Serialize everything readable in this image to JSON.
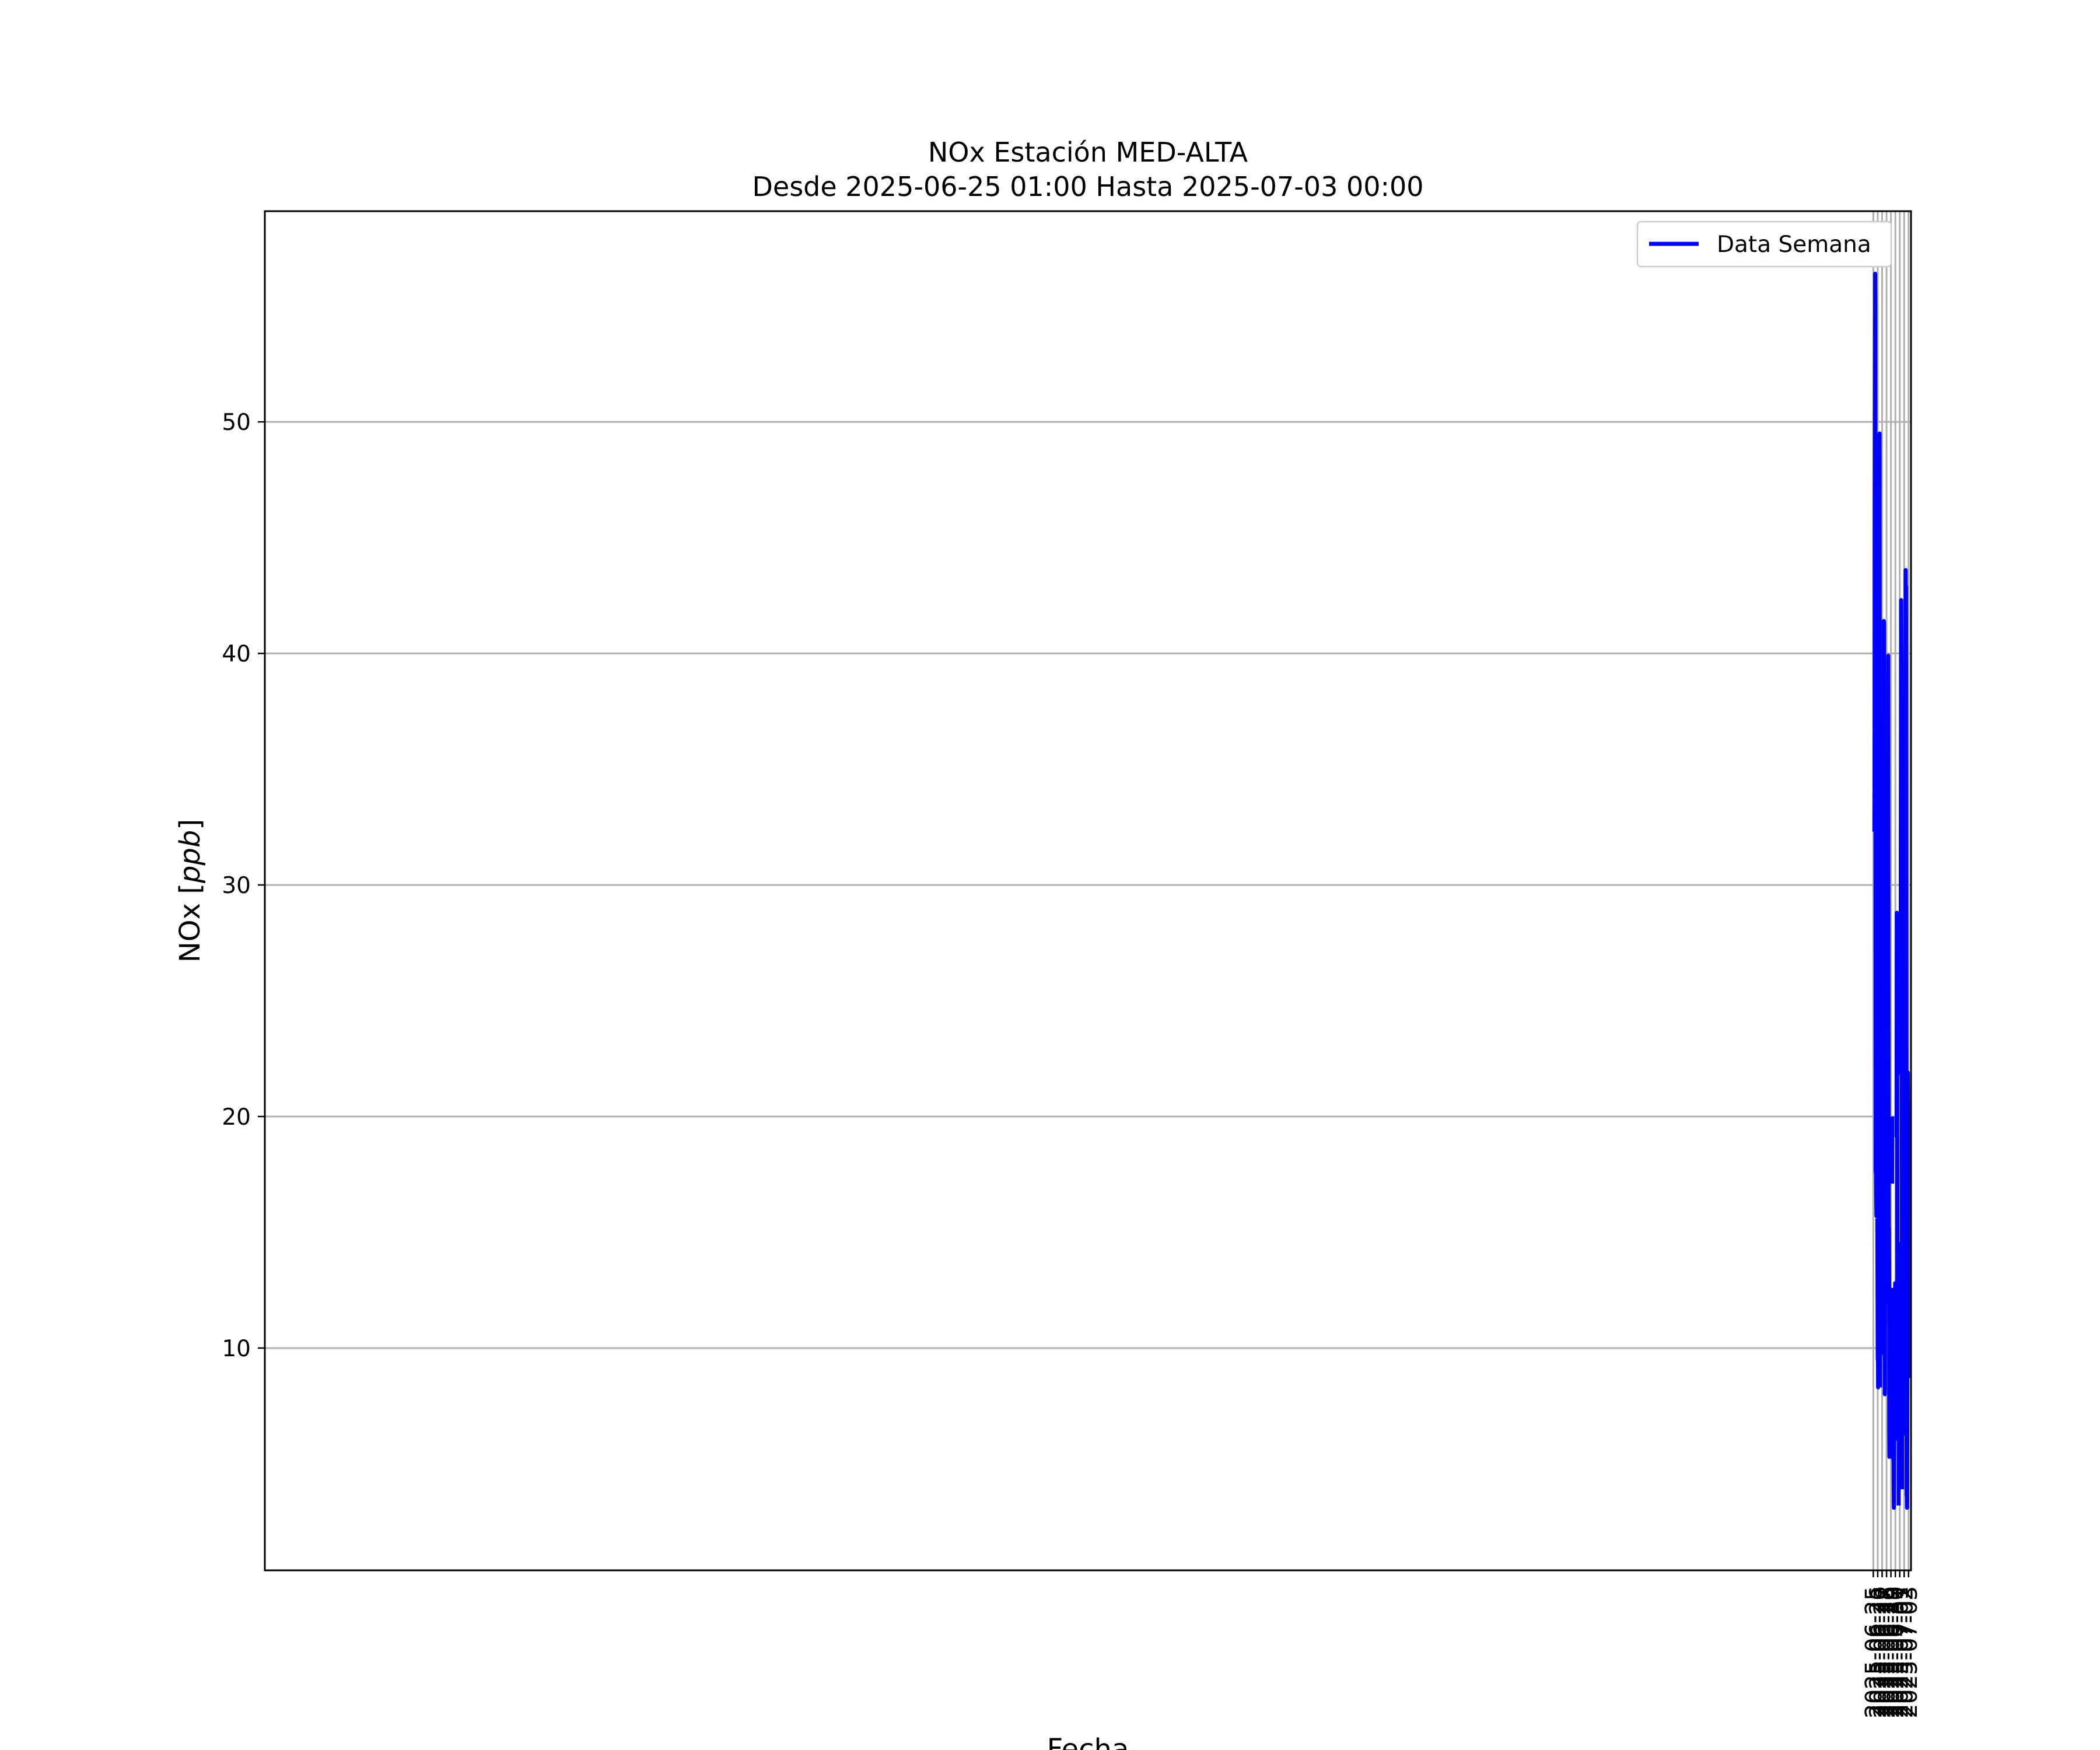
{
  "chart_data": {
    "type": "line",
    "title_line1": "NOx Estación MED-ALTA",
    "title_line2": "Desde 2025-06-25 01:00 Hasta 2025-07-03 00:00",
    "xlabel": "Fecha",
    "ylabel": "NOx [ppb]",
    "ylabel_parts": {
      "prefix": "NOx [",
      "unit": "ppb",
      "suffix": "]"
    },
    "x_ticks": [
      "2025-06-25",
      "2025-06-26",
      "2025-06-27",
      "2025-06-28",
      "2025-06-29",
      "2025-06-30",
      "2025-07-01",
      "2025-07-02",
      "2025-07-03"
    ],
    "y_ticks": [
      10,
      20,
      30,
      40,
      50
    ],
    "xlim": [
      "2024-06-24T22:26",
      "2025-07-03T13:15"
    ],
    "ylim": [
      0.4,
      59.1
    ],
    "grid": true,
    "legend_position": "top-right",
    "series": [
      {
        "name": "Data Semana",
        "color": "#0000ff",
        "segments": [
          [
            [
              "2025-06-25T06:00",
              32.3
            ],
            [
              "2025-06-25T07:00",
              34.5
            ],
            [
              "2025-06-25T08:00",
              46.3
            ],
            [
              "2025-06-25T09:00",
              49.6
            ],
            [
              "2025-06-25T10:00",
              56.4
            ],
            [
              "2025-06-25T11:00",
              55.0
            ],
            [
              "2025-06-25T12:00",
              30.0
            ],
            [
              "2025-06-25T13:00",
              17.6
            ],
            [
              "2025-06-25T14:00",
              18.6
            ],
            [
              "2025-06-25T15:00",
              17.7
            ],
            [
              "2025-06-25T16:00",
              16.6
            ],
            [
              "2025-06-25T17:00",
              15.7
            ],
            [
              "2025-06-25T18:00",
              18.6
            ]
          ],
          [
            [
              "2025-06-25T22:00",
              15.6
            ],
            [
              "2025-06-25T23:00",
              13.0
            ],
            [
              "2025-06-26T00:00",
              9.5
            ],
            [
              "2025-06-26T01:00",
              11.6
            ],
            [
              "2025-06-26T02:00",
              8.3
            ],
            [
              "2025-06-26T03:00",
              9.5
            ],
            [
              "2025-06-26T04:00",
              11.6
            ],
            [
              "2025-06-26T05:00",
              19.6
            ],
            [
              "2025-06-26T06:00",
              32.3
            ],
            [
              "2025-06-26T07:00",
              42.0
            ],
            [
              "2025-06-26T08:00",
              44.7
            ],
            [
              "2025-06-26T09:00",
              46.4
            ],
            [
              "2025-06-26T10:00",
              49.5
            ],
            [
              "2025-06-26T11:00",
              33.0
            ],
            [
              "2025-06-26T12:00",
              13.7
            ],
            [
              "2025-06-26T13:00",
              8.3
            ]
          ],
          [
            [
              "2025-06-26T17:00",
              9.7
            ],
            [
              "2025-06-26T18:00",
              17.7
            ],
            [
              "2025-06-26T19:00",
              16.3
            ],
            [
              "2025-06-26T20:00",
              10.7
            ],
            [
              "2025-06-26T21:00",
              10.5
            ],
            [
              "2025-06-26T22:00",
              15.1
            ],
            [
              "2025-06-26T23:00",
              17.4
            ],
            [
              "2025-06-27T00:00",
              16.2
            ],
            [
              "2025-06-27T01:00",
              15.0
            ],
            [
              "2025-06-27T02:00",
              16.4
            ],
            [
              "2025-06-27T03:00",
              17.6
            ],
            [
              "2025-06-27T04:00",
              17.5
            ],
            [
              "2025-06-27T05:00",
              21.8
            ],
            [
              "2025-06-27T06:00",
              23.7
            ],
            [
              "2025-06-27T07:00",
              32.5
            ],
            [
              "2025-06-27T08:00",
              35.5
            ],
            [
              "2025-06-27T09:00",
              41.4
            ],
            [
              "2025-06-27T10:00",
              41.3
            ],
            [
              "2025-06-27T11:00",
              30.0
            ],
            [
              "2025-06-27T12:00",
              23.0
            ],
            [
              "2025-06-27T13:00",
              15.2
            ],
            [
              "2025-06-27T14:00",
              10.0
            ],
            [
              "2025-06-27T15:00",
              8.0
            ],
            [
              "2025-06-27T16:00",
              15.1
            ],
            [
              "2025-06-27T17:00",
              19.3
            ],
            [
              "2025-06-27T18:00",
              17.7
            ],
            [
              "2025-06-27T19:00",
              19.2
            ],
            [
              "2025-06-27T20:00",
              15.6
            ],
            [
              "2025-06-27T21:00",
              16.7
            ],
            [
              "2025-06-27T22:00",
              14.2
            ],
            [
              "2025-06-27T23:00",
              16.7
            ],
            [
              "2025-06-28T00:00",
              13.3
            ],
            [
              "2025-06-28T01:00",
              13.7
            ]
          ],
          [
            [
              "2025-06-28T04:00",
              11.9
            ],
            [
              "2025-06-28T05:00",
              12.5
            ],
            [
              "2025-06-28T06:00",
              15.5
            ],
            [
              "2025-06-28T07:00",
              24.3
            ],
            [
              "2025-06-28T08:00",
              35.7
            ],
            [
              "2025-06-28T09:00",
              39.9
            ],
            [
              "2025-06-28T10:00",
              30.1
            ],
            [
              "2025-06-28T11:00",
              20.2
            ],
            [
              "2025-06-28T12:00",
              14.9
            ],
            [
              "2025-06-28T13:00",
              15.2
            ],
            [
              "2025-06-28T14:00",
              13.2
            ],
            [
              "2025-06-28T15:00",
              6.5
            ],
            [
              "2025-06-28T16:00",
              5.3
            ],
            [
              "2025-06-28T17:00",
              8.2
            ],
            [
              "2025-06-28T18:00",
              11.6
            ],
            [
              "2025-06-28T19:00",
              10.8
            ]
          ],
          [
            [
              "2025-06-28T21:00",
              8.0
            ],
            [
              "2025-06-28T22:00",
              10.0
            ],
            [
              "2025-06-28T23:00",
              9.8
            ],
            [
              "2025-06-29T00:00",
              10.8
            ],
            [
              "2025-06-29T01:00",
              10.6
            ],
            [
              "2025-06-29T02:00",
              10.8
            ],
            [
              "2025-06-29T03:00",
              12.2
            ],
            [
              "2025-06-29T04:00",
              11.5
            ]
          ],
          [
            [
              "2025-06-29T06:00",
              17.1
            ],
            [
              "2025-06-29T07:00",
              20.0
            ]
          ],
          [
            [
              "2025-06-29T11:00",
              12.6
            ],
            [
              "2025-06-29T12:00",
              6.5
            ],
            [
              "2025-06-29T13:00",
              5.2
            ],
            [
              "2025-06-29T14:00",
              7.3
            ],
            [
              "2025-06-29T15:00",
              4.7
            ],
            [
              "2025-06-29T16:00",
              3.1
            ],
            [
              "2025-06-29T17:00",
              4.6
            ],
            [
              "2025-06-29T18:00",
              6.7
            ],
            [
              "2025-06-29T19:00",
              9.7
            ],
            [
              "2025-06-29T20:00",
              10.7
            ],
            [
              "2025-06-29T21:00",
              11.0
            ],
            [
              "2025-06-29T22:00",
              11.1
            ],
            [
              "2025-06-29T23:00",
              12.8
            ],
            [
              "2025-06-30T00:00",
              11.1
            ]
          ],
          [
            [
              "2025-06-30T07:00",
              19.1
            ],
            [
              "2025-06-30T08:00",
              28.8
            ],
            [
              "2025-06-30T09:00",
              27.1
            ],
            [
              "2025-06-30T10:00",
              20.4
            ],
            [
              "2025-06-30T11:00",
              13.0
            ],
            [
              "2025-06-30T12:00",
              6.0
            ]
          ],
          [
            [
              "2025-06-30T18:00",
              3.2
            ],
            [
              "2025-06-30T19:00",
              9.6
            ],
            [
              "2025-06-30T20:00",
              14.5
            ],
            [
              "2025-06-30T21:00",
              12.0
            ],
            [
              "2025-06-30T22:00",
              10.0
            ]
          ],
          [
            [
              "2025-07-01T00:00",
              8.7
            ],
            [
              "2025-07-01T01:00",
              10.6
            ],
            [
              "2025-07-01T02:00",
              10.4
            ]
          ],
          [
            [
              "2025-07-01T05:00",
              21.8
            ],
            [
              "2025-07-01T06:00",
              32.0
            ],
            [
              "2025-07-01T07:00",
              36.0
            ],
            [
              "2025-07-01T08:00",
              42.3
            ],
            [
              "2025-07-01T09:00",
              38.6
            ],
            [
              "2025-07-01T10:00",
              29.0
            ],
            [
              "2025-07-01T11:00",
              20.5
            ],
            [
              "2025-07-01T12:00",
              12.6
            ],
            [
              "2025-07-01T13:00",
              3.9
            ]
          ],
          [
            [
              "2025-07-01T16:00",
              7.0
            ],
            [
              "2025-07-01T17:00",
              11.2
            ],
            [
              "2025-07-01T18:00",
              11.3
            ],
            [
              "2025-07-01T19:00",
              17.3
            ],
            [
              "2025-07-01T20:00",
              26.5
            ],
            [
              "2025-07-01T21:00",
              21.7
            ],
            [
              "2025-07-01T22:00",
              16.4
            ],
            [
              "2025-07-01T23:00",
              12.4
            ],
            [
              "2025-07-02T00:00",
              14.4
            ],
            [
              "2025-07-02T01:00",
              10.0
            ],
            [
              "2025-07-02T02:00",
              7.9
            ],
            [
              "2025-07-02T03:00",
              8.9
            ],
            [
              "2025-07-02T04:00",
              6.3
            ],
            [
              "2025-07-02T05:00",
              12.0
            ],
            [
              "2025-07-02T06:00",
              27.0
            ],
            [
              "2025-07-02T07:00",
              37.5
            ],
            [
              "2025-07-02T08:00",
              43.6
            ],
            [
              "2025-07-02T09:00",
              41.3
            ],
            [
              "2025-07-02T10:00",
              42.9
            ],
            [
              "2025-07-02T11:00",
              35.3
            ],
            [
              "2025-07-02T12:00",
              19.1
            ],
            [
              "2025-07-02T13:00",
              9.1
            ],
            [
              "2025-07-02T14:00",
              3.6
            ],
            [
              "2025-07-02T15:00",
              4.1
            ],
            [
              "2025-07-02T16:00",
              3.1
            ],
            [
              "2025-07-02T17:00",
              8.2
            ],
            [
              "2025-07-02T18:00",
              12.6
            ],
            [
              "2025-07-02T19:00",
              15.8
            ],
            [
              "2025-07-02T20:00",
              21.9
            ],
            [
              "2025-07-02T21:00",
              20.6
            ],
            [
              "2025-07-02T22:00",
              18.2
            ],
            [
              "2025-07-02T23:00",
              15.9
            ],
            [
              "2025-07-03T00:00",
              8.7
            ]
          ]
        ]
      }
    ]
  }
}
